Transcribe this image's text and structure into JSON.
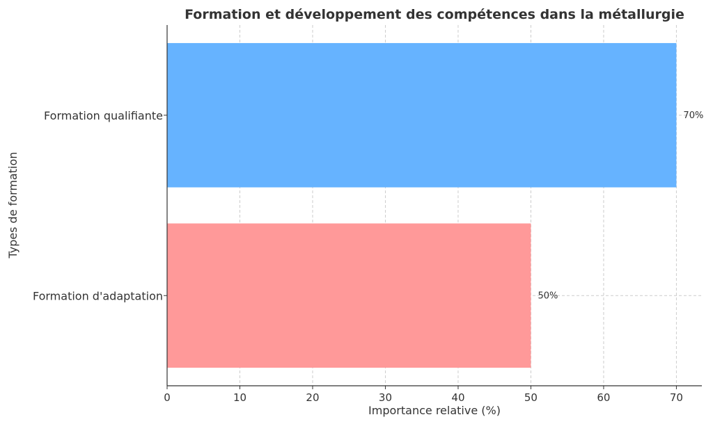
{
  "chart_data": {
    "type": "bar",
    "orientation": "horizontal",
    "title": "Formation et développement des compétences dans la métallurgie",
    "xlabel": "Importance relative (%)",
    "ylabel": "Types de formation",
    "categories": [
      "Formation qualifiante",
      "Formation d'adaptation"
    ],
    "values": [
      70,
      50
    ],
    "data_labels": [
      "70%",
      "50%"
    ],
    "colors": [
      "#66b3ff",
      "#ff9999"
    ],
    "xlim": [
      0,
      73.5
    ],
    "xticks": [
      0,
      10,
      20,
      30,
      40,
      50,
      60,
      70
    ],
    "grid": true
  }
}
